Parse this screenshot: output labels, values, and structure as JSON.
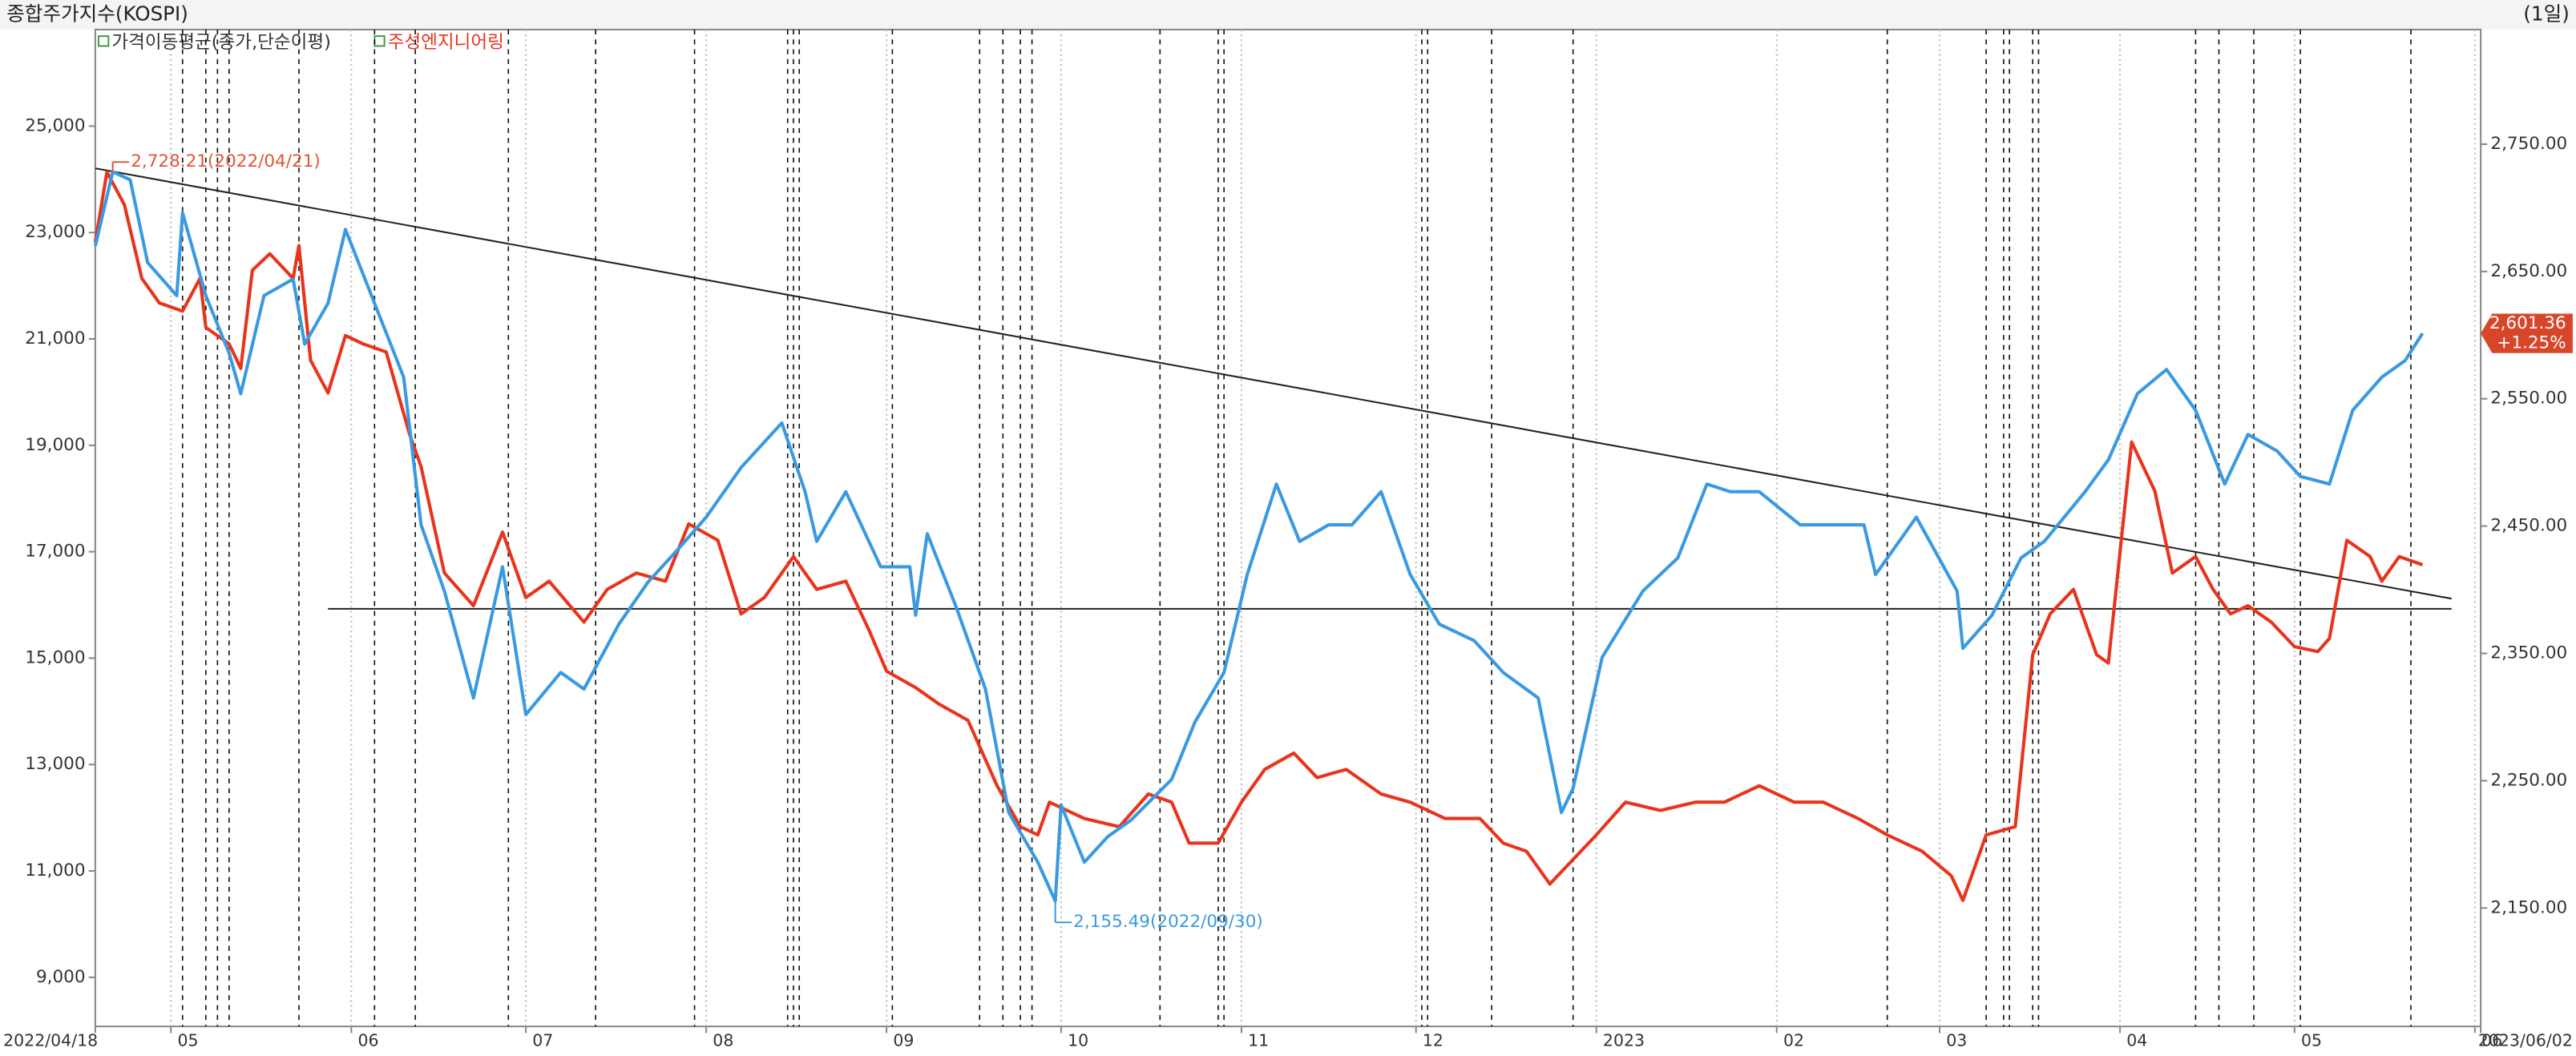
{
  "chart_data": {
    "type": "line",
    "period": "(1일)",
    "indicator": "가격이동평균(종가,단순이평)",
    "xlim": [
      0,
      410
    ],
    "xticks": [
      {
        "value": 0,
        "label": "2022/04/18"
      },
      {
        "value": 13,
        "label": "05"
      },
      {
        "value": 44,
        "label": "06"
      },
      {
        "value": 74,
        "label": "07"
      },
      {
        "value": 105,
        "label": "08"
      },
      {
        "value": 136,
        "label": "09"
      },
      {
        "value": 166,
        "label": "10"
      },
      {
        "value": 197,
        "label": "11"
      },
      {
        "value": 227,
        "label": "12"
      },
      {
        "value": 258,
        "label": "2023"
      },
      {
        "value": 289,
        "label": "02"
      },
      {
        "value": 317,
        "label": "03"
      },
      {
        "value": 348,
        "label": "04"
      },
      {
        "value": 378,
        "label": "05"
      },
      {
        "value": 409,
        "label": "06"
      },
      {
        "value": 410,
        "label": "2023/06/02"
      }
    ],
    "ylim": [
      8077,
      26815
    ],
    "yticks": [
      {
        "value": 9000,
        "label": "9,000"
      },
      {
        "value": 11000,
        "label": "11,000"
      },
      {
        "value": 13000,
        "label": "13,000"
      },
      {
        "value": 15000,
        "label": "15,000"
      },
      {
        "value": 17000,
        "label": "17,000"
      },
      {
        "value": 19000,
        "label": "19,000"
      },
      {
        "value": 21000,
        "label": "21,000"
      },
      {
        "value": 23000,
        "label": "23,000"
      },
      {
        "value": 25000,
        "label": "25,000"
      }
    ],
    "y2lim": [
      2057,
      2840
    ],
    "y2ticks": [
      {
        "value": 2150,
        "label": "2,150.00"
      },
      {
        "value": 2250,
        "label": "2,250.00"
      },
      {
        "value": 2350,
        "label": "2,350.00"
      },
      {
        "value": 2450,
        "label": "2,450.00"
      },
      {
        "value": 2550,
        "label": "2,550.00"
      },
      {
        "value": 2650,
        "label": "2,650.00"
      },
      {
        "value": 2750,
        "label": "2,750.00"
      }
    ],
    "series": [
      {
        "name": "종합주가지수(KOSPI)",
        "color": "#3a9ae0",
        "axis": "y2",
        "x": [
          0,
          3,
          6,
          9,
          14,
          15,
          19,
          23,
          25,
          29,
          34,
          36,
          40,
          43,
          48,
          53,
          56,
          60,
          65,
          70,
          74,
          80,
          84,
          90,
          95,
          100,
          105,
          111,
          118,
          122,
          124,
          129,
          135,
          140,
          141,
          143,
          148,
          153,
          157,
          162,
          165,
          166,
          170,
          174,
          178,
          185,
          189,
          194,
          198,
          203,
          207,
          212,
          216,
          221,
          226,
          231,
          237,
          242,
          248,
          252,
          254,
          259,
          266,
          272,
          277,
          281,
          286,
          293,
          297,
          304,
          306,
          313,
          320,
          321,
          326,
          331,
          335,
          342,
          346,
          351,
          356,
          361,
          366,
          370,
          375,
          379,
          384,
          388,
          393,
          397,
          400
        ],
        "values": [
          2670,
          2728.21,
          2722,
          2657,
          2631,
          2696,
          2631,
          2586,
          2554,
          2631,
          2644,
          2593,
          2625,
          2683,
          2625,
          2567,
          2451,
          2399,
          2315,
          2418,
          2302,
          2335,
          2322,
          2373,
          2406,
          2431,
          2457,
          2496,
          2531,
          2477,
          2438,
          2477,
          2418,
          2418,
          2380,
          2444,
          2386,
          2322,
          2225,
          2186,
          2155.49,
          2231,
          2186,
          2206,
          2219,
          2251,
          2296,
          2335,
          2412,
          2483,
          2438,
          2451,
          2451,
          2477,
          2412,
          2373,
          2360,
          2335,
          2315,
          2225,
          2244,
          2347,
          2399,
          2425,
          2483,
          2477,
          2477,
          2451,
          2451,
          2451,
          2412,
          2457,
          2399,
          2354,
          2380,
          2425,
          2438,
          2477,
          2502,
          2554,
          2573,
          2541,
          2483,
          2522,
          2509,
          2489,
          2483,
          2541,
          2567,
          2580,
          2601.36
        ]
      },
      {
        "name": "주성엔지니어링",
        "color": "#e8341c",
        "x": [
          0,
          2,
          5,
          8,
          11,
          15,
          18,
          19,
          23,
          25,
          27,
          30,
          34,
          35,
          37,
          40,
          43,
          46,
          50,
          54,
          56,
          60,
          65,
          70,
          74,
          78,
          84,
          88,
          93,
          98,
          102,
          107,
          111,
          115,
          120,
          124,
          129,
          133,
          136,
          141,
          145,
          150,
          155,
          159,
          162,
          164,
          170,
          176,
          181,
          185,
          188,
          193,
          197,
          201,
          206,
          210,
          215,
          221,
          226,
          232,
          238,
          242,
          246,
          250,
          254,
          258,
          263,
          269,
          275,
          280,
          286,
          292,
          297,
          303,
          308,
          314,
          319,
          321,
          325,
          330,
          333,
          336,
          340,
          344,
          346,
          350,
          354,
          357,
          361,
          364,
          367,
          370,
          374,
          378,
          382,
          384,
          387,
          391,
          393,
          396,
          400
        ],
        "values": [
          22815,
          24138,
          23523,
          22138,
          21677,
          21523,
          22138,
          21215,
          20908,
          20446,
          22292,
          22600,
          22138,
          22754,
          20600,
          19985,
          21062,
          20908,
          20754,
          19215,
          18600,
          16600,
          15985,
          17369,
          16138,
          16446,
          15677,
          16292,
          16600,
          16446,
          17523,
          17215,
          15831,
          16138,
          16908,
          16292,
          16446,
          15523,
          14754,
          14446,
          14138,
          13831,
          12600,
          11831,
          11677,
          12292,
          11985,
          11831,
          12446,
          12292,
          11523,
          11523,
          12292,
          12908,
          13215,
          12754,
          12908,
          12446,
          12292,
          11985,
          11985,
          11523,
          11369,
          10754,
          11215,
          11677,
          12292,
          12138,
          12292,
          12292,
          12600,
          12292,
          12292,
          11985,
          11677,
          11369,
          10908,
          10446,
          11677,
          11831,
          15062,
          15831,
          16292,
          15062,
          14908,
          19062,
          18138,
          16600,
          16908,
          16292,
          15831,
          15985,
          15677,
          15215,
          15123,
          15369,
          17215,
          16908,
          16446,
          16908,
          16754
        ]
      }
    ],
    "trend_lines": [
      {
        "x": [
          0,
          405
        ],
        "values": [
          2731,
          2393
        ],
        "axis": "y2",
        "color": "#222"
      },
      {
        "x": [
          40,
          405
        ],
        "values": [
          2385,
          2385
        ],
        "axis": "y2",
        "color": "#222"
      }
    ],
    "event_x": [
      15,
      19,
      21,
      23,
      35,
      48,
      55,
      71,
      86,
      103,
      119,
      120,
      121,
      137,
      152,
      156,
      159,
      161,
      183,
      193,
      194,
      228,
      229,
      240,
      254,
      308,
      325,
      328,
      329,
      333,
      334,
      361,
      365,
      371,
      379,
      398
    ],
    "annotations": [
      {
        "text": "2,728.21(2022/04/21)",
        "x": 3,
        "value": 2728.21,
        "axis": "y2",
        "color": "#e0553a"
      },
      {
        "text": "2,155.49(2022/09/30)",
        "x": 165,
        "value": 2155.49,
        "axis": "y2",
        "color": "#3a9ae0"
      }
    ],
    "current_label": {
      "price": "2,601.36",
      "change": "+1.25%",
      "value": 2601.36,
      "color": "#d8462a"
    }
  }
}
